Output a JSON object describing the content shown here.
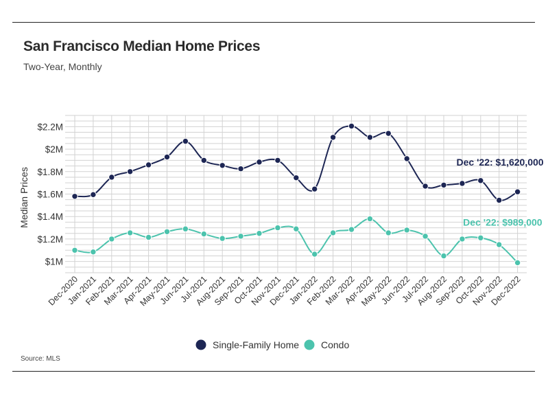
{
  "title": "San Francisco Median Home Prices",
  "subtitle": "Two-Year, Monthly",
  "source": "Source: MLS",
  "chart_data": {
    "type": "line",
    "title": "San Francisco Median Home Prices",
    "subtitle": "Two-Year, Monthly",
    "xlabel": "",
    "ylabel": "Median Prices",
    "ylim": [
      900000,
      2300000
    ],
    "yticks": [
      1000000,
      1200000,
      1400000,
      1600000,
      1800000,
      2000000,
      2200000
    ],
    "ytick_labels": [
      "$1M",
      "$1.2M",
      "$1.4M",
      "$1.6M",
      "$1.8M",
      "$2M",
      "$2.2M"
    ],
    "grid": true,
    "legend_position": "bottom",
    "categories": [
      "Dec-2020",
      "Jan-2021",
      "Feb-2021",
      "Mar-2021",
      "Apr-2021",
      "May-2021",
      "Jun-2021",
      "Jul-2021",
      "Aug-2021",
      "Sep-2021",
      "Oct-2021",
      "Nov-2021",
      "Dec-2021",
      "Jan-2022",
      "Feb-2022",
      "Mar-2022",
      "Apr-2022",
      "May-2022",
      "Jun-2022",
      "Jul-2022",
      "Aug-2022",
      "Sep-2022",
      "Oct-2022",
      "Nov-2022",
      "Dec-2022"
    ],
    "series": [
      {
        "name": "Single-Family Home",
        "color": "#1d2654",
        "values": [
          1580000,
          1595000,
          1750000,
          1800000,
          1860000,
          1930000,
          2070000,
          1900000,
          1855000,
          1825000,
          1885000,
          1900000,
          1745000,
          1645000,
          2105000,
          2205000,
          2105000,
          2140000,
          1915000,
          1670000,
          1680000,
          1695000,
          1720000,
          1545000,
          1620000
        ]
      },
      {
        "name": "Condo",
        "color": "#4cc3ad",
        "values": [
          1100000,
          1085000,
          1200000,
          1255000,
          1215000,
          1265000,
          1290000,
          1245000,
          1205000,
          1225000,
          1250000,
          1300000,
          1290000,
          1065000,
          1255000,
          1285000,
          1380000,
          1255000,
          1280000,
          1225000,
          1050000,
          1200000,
          1210000,
          1150000,
          989000
        ]
      }
    ],
    "annotations": [
      {
        "series": "Single-Family Home",
        "text": "Dec '22: $1,620,000"
      },
      {
        "series": "Condo",
        "text": "Dec '22: $989,000"
      }
    ]
  }
}
